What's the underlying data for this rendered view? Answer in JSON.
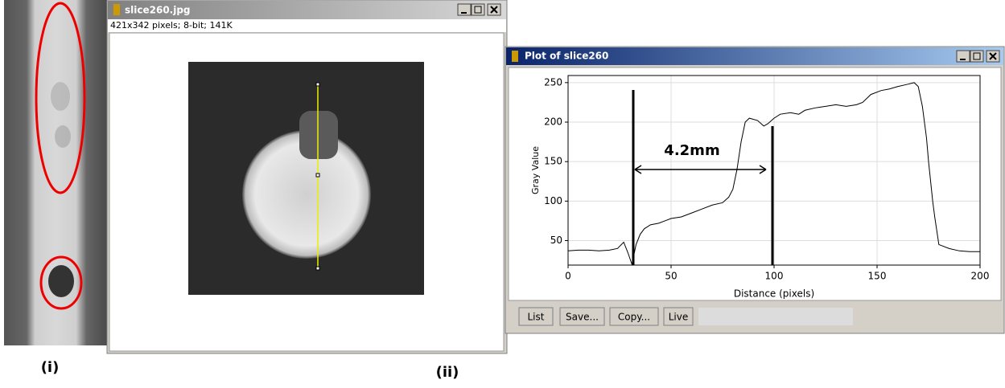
{
  "labels": {
    "left": "(i)",
    "right": "(ii)"
  },
  "image_window": {
    "title": "slice260.jpg",
    "info": "421x342 pixels; 8-bit; 141K"
  },
  "plot_window": {
    "title": "Plot of slice260",
    "buttons": [
      "List",
      "Save...",
      "Copy...",
      "Live"
    ]
  },
  "chart_data": {
    "type": "line",
    "xlabel": "Distance (pixels)",
    "ylabel": "Gray Value",
    "annotation": "4.2mm",
    "x": [
      0,
      5,
      10,
      15,
      20,
      24,
      27,
      29,
      31,
      33,
      35,
      37,
      40,
      44,
      47,
      50,
      55,
      60,
      65,
      70,
      75,
      78,
      80,
      82,
      84,
      86,
      88,
      92,
      95,
      97,
      100,
      103,
      108,
      112,
      115,
      120,
      125,
      130,
      135,
      140,
      143,
      147,
      152,
      156,
      160,
      165,
      168,
      170,
      172,
      174,
      175,
      177,
      178,
      180,
      185,
      190,
      195,
      200
    ],
    "values": [
      37,
      38,
      38,
      37,
      38,
      40,
      48,
      35,
      20,
      45,
      58,
      65,
      70,
      72,
      75,
      78,
      80,
      85,
      90,
      95,
      98,
      105,
      115,
      140,
      175,
      200,
      205,
      202,
      195,
      198,
      205,
      210,
      212,
      210,
      215,
      218,
      220,
      222,
      220,
      222,
      225,
      235,
      240,
      242,
      245,
      248,
      250,
      245,
      220,
      180,
      150,
      100,
      80,
      45,
      40,
      37,
      36,
      36
    ],
    "color": "#000000",
    "xlim": [
      0,
      200
    ],
    "ylim": [
      19,
      259
    ],
    "xticks": [
      0,
      50,
      100,
      150,
      200
    ],
    "yticks": [
      50,
      100,
      150,
      200,
      250
    ],
    "grid": true
  }
}
